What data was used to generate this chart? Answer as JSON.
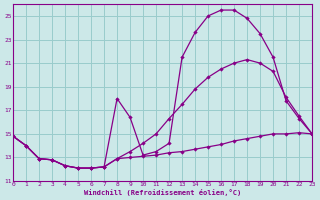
{
  "xlabel": "Windchill (Refroidissement éolien,°C)",
  "bg_color": "#cce8e8",
  "line_color": "#880088",
  "grid_color": "#99cccc",
  "xlim": [
    0,
    23
  ],
  "ylim": [
    11,
    26
  ],
  "yticks": [
    11,
    13,
    15,
    17,
    19,
    21,
    23,
    25
  ],
  "xticks": [
    0,
    1,
    2,
    3,
    4,
    5,
    6,
    7,
    8,
    9,
    10,
    11,
    12,
    13,
    14,
    15,
    16,
    17,
    18,
    19,
    20,
    21,
    22,
    23
  ],
  "curve1_x": [
    0,
    1,
    2,
    3,
    4,
    5,
    6,
    7,
    8,
    9,
    10,
    11,
    12,
    13,
    14,
    15,
    16,
    17,
    18,
    19,
    20,
    21,
    22,
    23
  ],
  "curve1_y": [
    14.8,
    14.0,
    12.9,
    12.8,
    12.3,
    12.1,
    12.1,
    12.2,
    12.9,
    13.0,
    13.1,
    13.2,
    13.4,
    13.5,
    13.7,
    13.9,
    14.1,
    14.4,
    14.6,
    14.8,
    15.0,
    15.0,
    15.1,
    15.0
  ],
  "curve2_x": [
    0,
    1,
    2,
    3,
    4,
    5,
    6,
    7,
    8,
    9,
    10,
    11,
    12,
    13,
    14,
    15,
    16,
    17,
    18,
    19,
    20,
    21,
    22,
    23
  ],
  "curve2_y": [
    14.8,
    14.0,
    12.9,
    12.8,
    12.3,
    12.1,
    12.1,
    12.2,
    12.9,
    13.5,
    14.2,
    15.0,
    16.3,
    17.5,
    18.8,
    19.8,
    20.5,
    21.0,
    21.3,
    21.0,
    20.3,
    18.1,
    16.5,
    15.0
  ],
  "curve3_x": [
    0,
    1,
    2,
    3,
    4,
    5,
    6,
    7,
    8,
    9,
    10,
    11,
    12,
    13,
    14,
    15,
    16,
    17,
    18,
    19,
    20,
    21,
    22,
    23
  ],
  "curve3_y": [
    14.8,
    14.0,
    12.9,
    12.8,
    12.3,
    12.1,
    12.1,
    12.2,
    18.0,
    16.4,
    13.2,
    13.5,
    14.2,
    21.5,
    23.6,
    25.0,
    25.5,
    25.5,
    24.8,
    23.5,
    21.5,
    17.8,
    16.3,
    15.0
  ]
}
